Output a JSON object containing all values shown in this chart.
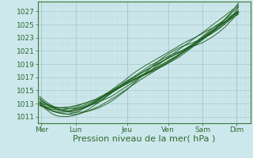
{
  "background_color": "#cde8ec",
  "grid_color_major": "#aac8cc",
  "grid_color_minor": "#bdd8dc",
  "line_color": "#1a5e1a",
  "xlabel": "Pression niveau de la mer( hPa )",
  "xlabel_fontsize": 8,
  "yticks": [
    1011,
    1013,
    1015,
    1017,
    1019,
    1021,
    1023,
    1025,
    1027
  ],
  "ylim": [
    1010.0,
    1028.5
  ],
  "xlim": [
    -0.1,
    6.1
  ],
  "xtick_labels": [
    "Mer",
    "Lun",
    "Jeu",
    "Ven",
    "Sam",
    "Dim"
  ],
  "xtick_positions": [
    0.0,
    1.0,
    2.5,
    3.7,
    4.7,
    5.7
  ],
  "num_lines": 11,
  "figsize": [
    3.2,
    2.0
  ],
  "dpi": 100
}
